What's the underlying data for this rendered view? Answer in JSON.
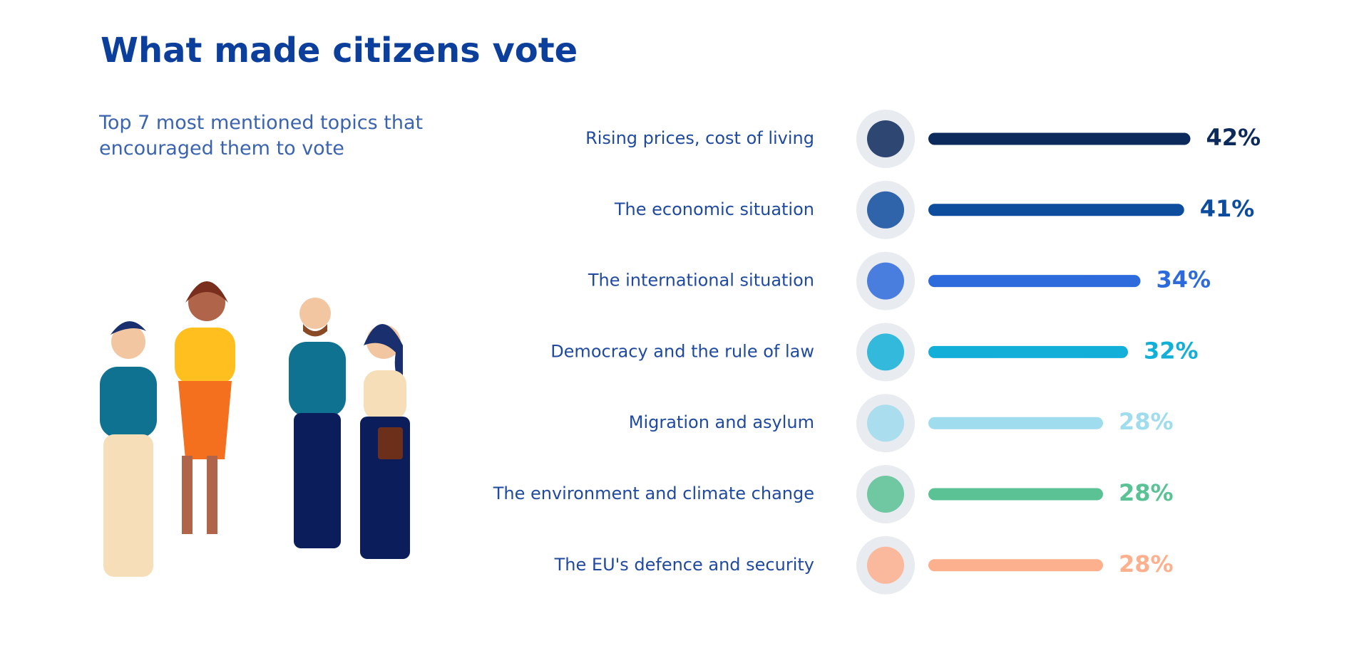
{
  "chart_data": {
    "type": "bar",
    "orientation": "horizontal",
    "title": "What made citizens vote",
    "subtitle": "Top 7 most mentioned topics that encouraged them to vote",
    "categories": [
      "Rising prices, cost of living",
      "The economic situation",
      "The international situation",
      "Democracy and the rule of law",
      "Migration and asylum",
      "The environment and climate change",
      "The EU's defence and security"
    ],
    "values": [
      42,
      41,
      34,
      32,
      28,
      28,
      28
    ],
    "value_labels": [
      "42%",
      "41%",
      "34%",
      "32%",
      "28%",
      "28%",
      "28%"
    ],
    "colors": [
      "#0d2a5c",
      "#0e4c9e",
      "#2d6bdc",
      "#12b0d8",
      "#9fdcee",
      "#5ac295",
      "#fdb08e"
    ]
  }
}
